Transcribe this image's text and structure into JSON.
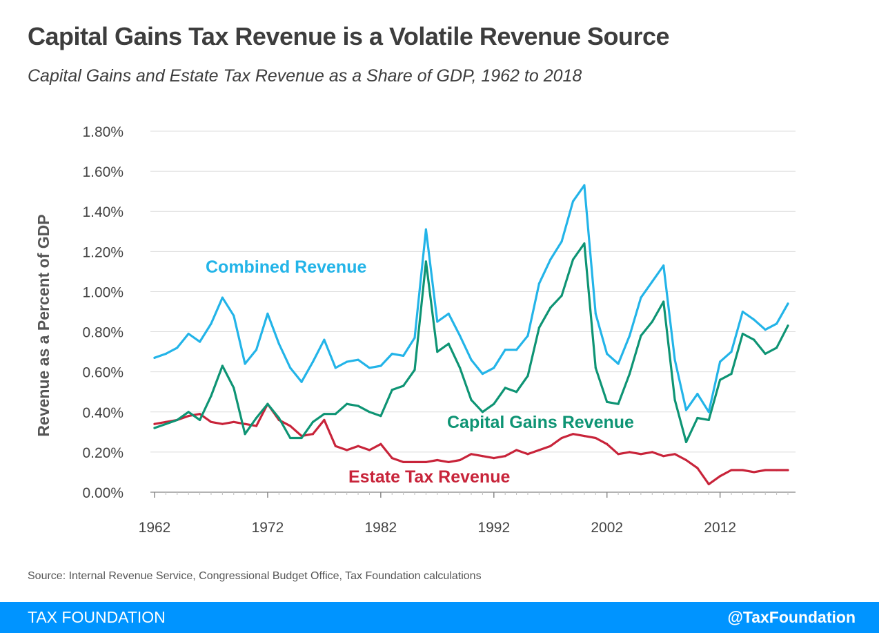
{
  "title": "Capital Gains Tax Revenue is a Volatile Revenue Source",
  "subtitle": "Capital Gains and Estate Tax Revenue as a Share of GDP, 1962 to 2018",
  "source": "Source: Internal Revenue Service, Congressional Budget Office, Tax Foundation calculations",
  "footer": {
    "brand": "TAX FOUNDATION",
    "handle": "@TaxFoundation"
  },
  "chart_data": {
    "type": "line",
    "xlabel": "",
    "ylabel": "Revenue as a Percent of GDP",
    "ylim": [
      0,
      1.8
    ],
    "y_ticks": [
      0,
      0.2,
      0.4,
      0.6,
      0.8,
      1.0,
      1.2,
      1.4,
      1.6,
      1.8
    ],
    "y_tick_labels": [
      "0.00%",
      "0.20%",
      "0.40%",
      "0.60%",
      "0.80%",
      "1.00%",
      "1.20%",
      "1.40%",
      "1.60%",
      "1.80%"
    ],
    "x_ticks": [
      1962,
      1972,
      1982,
      1992,
      2002,
      2012
    ],
    "x_tick_labels": [
      "1962",
      "1972",
      "1982",
      "1992",
      "2002",
      "2012"
    ],
    "grid": "horizontal",
    "x": [
      1962,
      1963,
      1964,
      1965,
      1966,
      1967,
      1968,
      1969,
      1970,
      1971,
      1972,
      1973,
      1974,
      1975,
      1976,
      1977,
      1978,
      1979,
      1980,
      1981,
      1982,
      1983,
      1984,
      1985,
      1986,
      1987,
      1988,
      1989,
      1990,
      1991,
      1992,
      1993,
      1994,
      1995,
      1996,
      1997,
      1998,
      1999,
      2000,
      2001,
      2002,
      2003,
      2004,
      2005,
      2006,
      2007,
      2008,
      2009,
      2010,
      2011,
      2012,
      2013,
      2014,
      2015,
      2016,
      2017,
      2018
    ],
    "series": [
      {
        "name": "Combined Revenue",
        "color": "#23b4e8",
        "values": [
          0.67,
          0.69,
          0.72,
          0.79,
          0.75,
          0.84,
          0.97,
          0.88,
          0.64,
          0.71,
          0.89,
          0.74,
          0.62,
          0.55,
          0.65,
          0.76,
          0.62,
          0.65,
          0.66,
          0.62,
          0.63,
          0.69,
          0.68,
          0.77,
          1.31,
          0.85,
          0.89,
          0.78,
          0.66,
          0.59,
          0.62,
          0.71,
          0.71,
          0.78,
          1.04,
          1.16,
          1.25,
          1.45,
          1.53,
          0.89,
          0.69,
          0.64,
          0.78,
          0.97,
          1.05,
          1.13,
          0.66,
          0.41,
          0.49,
          0.4,
          0.65,
          0.7,
          0.9,
          0.86,
          0.81,
          0.84,
          0.94
        ]
      },
      {
        "name": "Capital Gains Revenue",
        "color": "#0e9474",
        "values": [
          0.32,
          0.34,
          0.36,
          0.4,
          0.36,
          0.48,
          0.63,
          0.52,
          0.29,
          0.37,
          0.44,
          0.37,
          0.27,
          0.27,
          0.35,
          0.39,
          0.39,
          0.44,
          0.43,
          0.4,
          0.38,
          0.51,
          0.53,
          0.61,
          1.15,
          0.7,
          0.74,
          0.62,
          0.46,
          0.4,
          0.44,
          0.52,
          0.5,
          0.58,
          0.82,
          0.92,
          0.98,
          1.16,
          1.24,
          0.62,
          0.45,
          0.44,
          0.59,
          0.78,
          0.85,
          0.95,
          0.46,
          0.25,
          0.37,
          0.36,
          0.56,
          0.59,
          0.79,
          0.76,
          0.69,
          0.72,
          0.83
        ]
      },
      {
        "name": "Estate Tax Revenue",
        "color": "#c8243a",
        "values": [
          0.34,
          0.35,
          0.36,
          0.38,
          0.39,
          0.35,
          0.34,
          0.35,
          0.34,
          0.33,
          0.44,
          0.36,
          0.33,
          0.28,
          0.29,
          0.36,
          0.23,
          0.21,
          0.23,
          0.21,
          0.24,
          0.17,
          0.15,
          0.15,
          0.15,
          0.16,
          0.15,
          0.16,
          0.19,
          0.18,
          0.17,
          0.18,
          0.21,
          0.19,
          0.21,
          0.23,
          0.27,
          0.29,
          0.28,
          0.27,
          0.24,
          0.19,
          0.2,
          0.19,
          0.2,
          0.18,
          0.19,
          0.16,
          0.12,
          0.04,
          0.08,
          0.11,
          0.11,
          0.1,
          0.11,
          0.11,
          0.11
        ]
      }
    ],
    "annotations": [
      {
        "text": "Combined Revenue",
        "series": "Combined Revenue"
      },
      {
        "text": "Capital Gains Revenue",
        "series": "Capital Gains Revenue"
      },
      {
        "text": "Estate Tax Revenue",
        "series": "Estate Tax Revenue"
      }
    ]
  }
}
